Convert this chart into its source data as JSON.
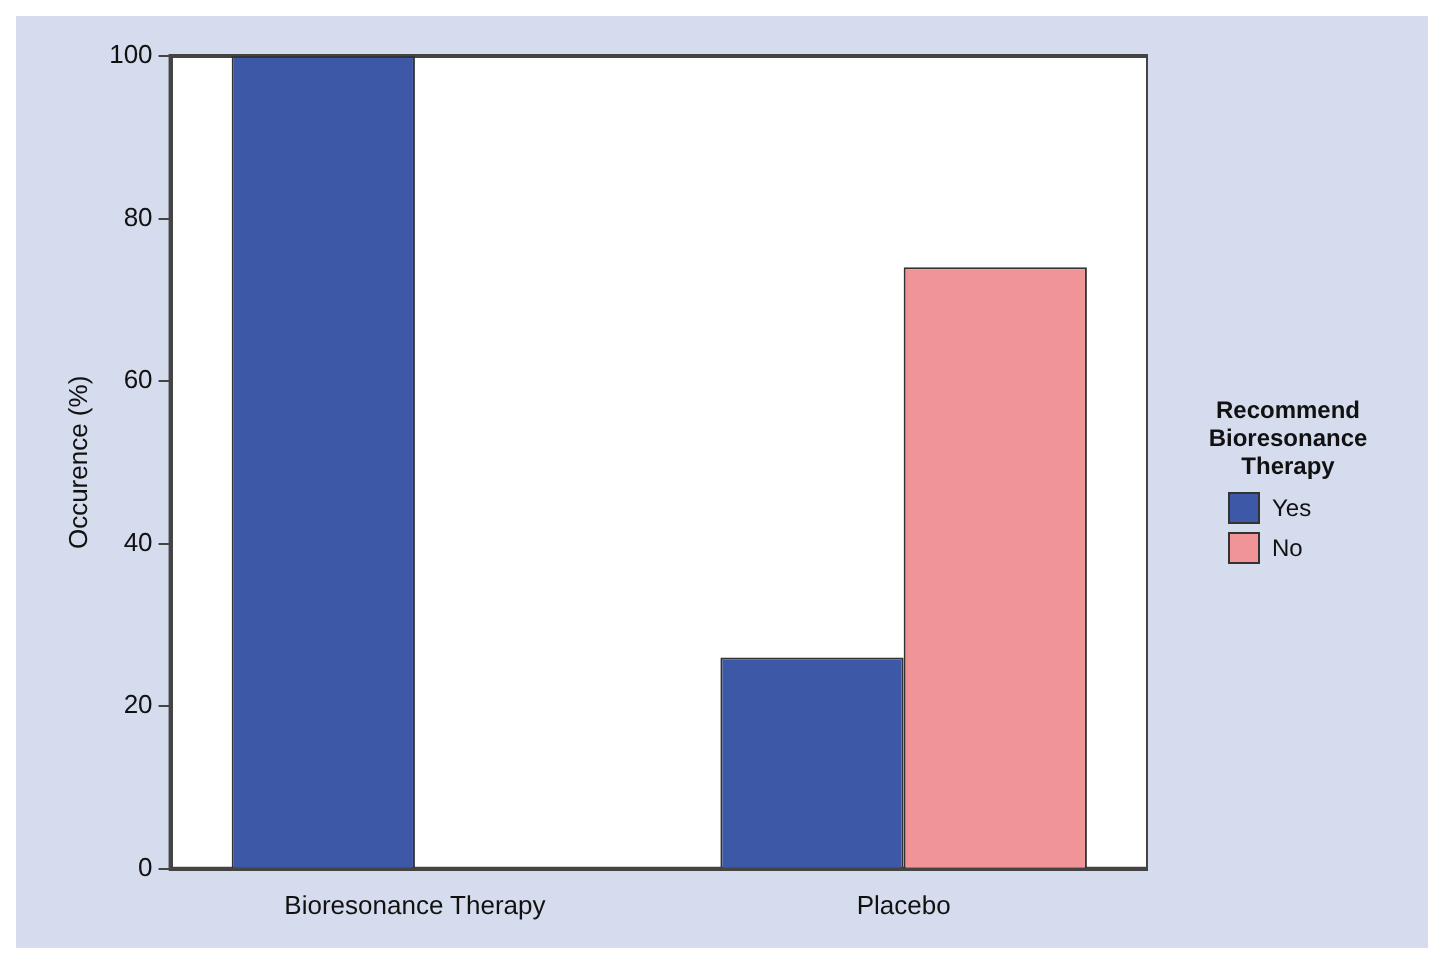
{
  "chart_data": {
    "type": "bar",
    "ylabel": "Occurence (%)",
    "legend_title": "Recommend Bioresonance Therapy",
    "categories": [
      "Bioresonance Therapy",
      "Placebo"
    ],
    "series": [
      {
        "name": "Yes",
        "color": "#3d58a6",
        "values": [
          100,
          26
        ]
      },
      {
        "name": "No",
        "color": "#f09497",
        "values": [
          0,
          74
        ]
      }
    ],
    "ylim": [
      0,
      100
    ],
    "yticks": [
      0,
      20,
      40,
      60,
      80,
      100
    ],
    "grid": false,
    "legend": "right"
  }
}
